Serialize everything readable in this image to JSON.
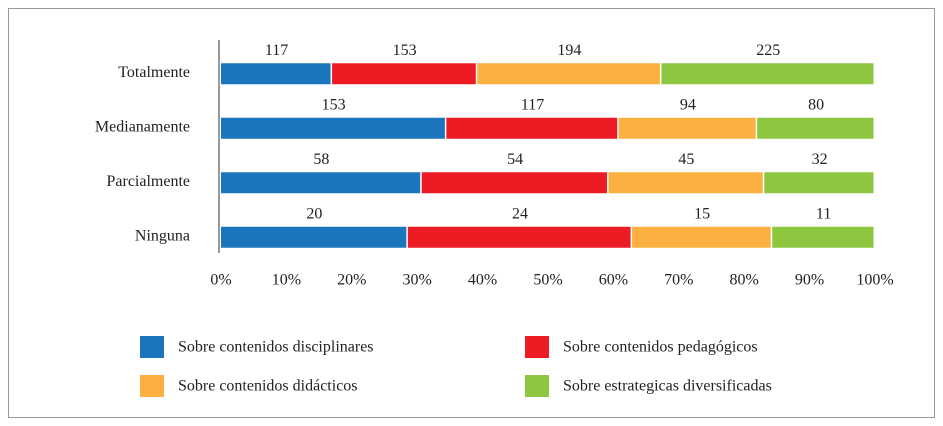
{
  "chart_data": {
    "type": "bar",
    "orientation": "horizontal",
    "stacked": "percent",
    "categories": [
      "Totalmente",
      "Medianamente",
      "Parcialmente",
      "Ninguna"
    ],
    "series": [
      {
        "name": "Sobre contenidos disciplinares",
        "color": "#1a75bc",
        "values": [
          117,
          153,
          58,
          20
        ]
      },
      {
        "name": "Sobre contenidos pedagógicos",
        "color": "#ed1c24",
        "values": [
          153,
          117,
          54,
          24
        ]
      },
      {
        "name": "Sobre contenidos didácticos",
        "color": "#fbb040",
        "values": [
          194,
          94,
          45,
          15
        ]
      },
      {
        "name": "Sobre estrategicas diversificadas",
        "color": "#8dc63f",
        "values": [
          225,
          80,
          32,
          11
        ]
      }
    ],
    "xlim": [
      0,
      100
    ],
    "xticks": [
      {
        "value": 0,
        "label": "0%"
      },
      {
        "value": 10,
        "label": "10%"
      },
      {
        "value": 20,
        "label": "20%"
      },
      {
        "value": 30,
        "label": "30%"
      },
      {
        "value": 40,
        "label": "40%"
      },
      {
        "value": 50,
        "label": "50%"
      },
      {
        "value": 60,
        "label": "60%"
      },
      {
        "value": 70,
        "label": "70%"
      },
      {
        "value": 80,
        "label": "80%"
      },
      {
        "value": 90,
        "label": "90%"
      },
      {
        "value": 100,
        "label": "100%"
      }
    ],
    "grid": false,
    "legend": "bottom"
  }
}
